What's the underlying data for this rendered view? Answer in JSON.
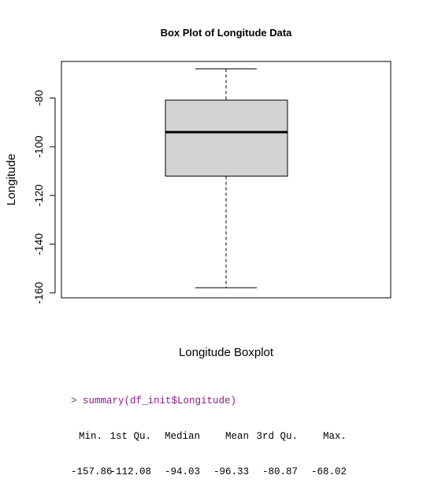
{
  "chart_data": {
    "type": "boxplot",
    "title": "Box Plot of Longitude Data",
    "xlabel": "Longitude Boxplot",
    "ylabel": "Longitude",
    "ylim": [
      -162,
      -65
    ],
    "yticks": [
      -80,
      -100,
      -120,
      -140,
      -160
    ],
    "ytick_labels": [
      "-80",
      "-100",
      "-120",
      "-140",
      "-160"
    ],
    "box": {
      "min": -157.86,
      "q1": -112.08,
      "median": -94.03,
      "q3": -80.87,
      "max": -68.02
    },
    "colors": {
      "box_fill": "#d3d3d3",
      "stroke": "#000000"
    }
  },
  "console": {
    "command": "> summary(df_init$Longitude)",
    "headers": [
      "Min.",
      "1st Qu.",
      "Median",
      "Mean",
      "3rd Qu.",
      "Max."
    ],
    "values": [
      "-157.86",
      "-112.08",
      "-94.03",
      "-96.33",
      "-80.87",
      "-68.02"
    ]
  }
}
